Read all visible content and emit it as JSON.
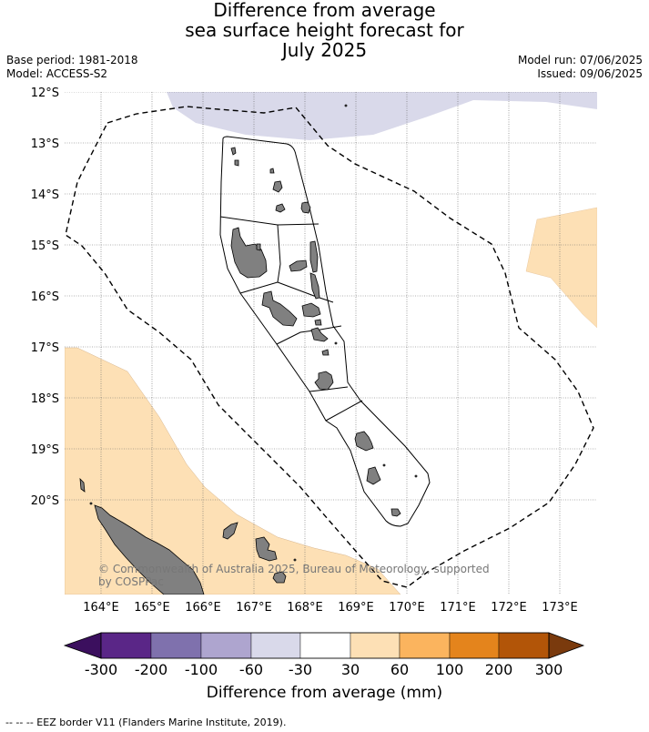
{
  "title": {
    "line1": "Difference from average",
    "line2": "sea surface height forecast for",
    "line3": "July 2025"
  },
  "meta_left": {
    "base_period": "Base period: 1981-2018",
    "model": "Model: ACCESS-S2"
  },
  "meta_right": {
    "model_run": "Model run: 07/06/2025",
    "issued": "Issued: 09/06/2025"
  },
  "map": {
    "lon_labels": [
      "164°E",
      "165°E",
      "166°E",
      "167°E",
      "168°E",
      "169°E",
      "170°E",
      "171°E",
      "172°E",
      "173°E"
    ],
    "lat_labels": [
      "12°S",
      "13°S",
      "14°S",
      "15°S",
      "16°S",
      "17°S",
      "18°S",
      "19°S",
      "20°S"
    ],
    "copyright_line1": "© Commonwealth of Australia 2025, Bureau of Meteorology, supported",
    "copyright_line2": "by COSPPac"
  },
  "colorbar": {
    "ticks": [
      "-300",
      "-200",
      "-100",
      "-60",
      "-30",
      "30",
      "60",
      "100",
      "200",
      "300"
    ],
    "colors": [
      "#3b0f5e",
      "#5a2687",
      "#7f71ad",
      "#aea5cf",
      "#d9d9ea",
      "#ffffff",
      "#fde0b5",
      "#fbb45e",
      "#e4841c",
      "#b25508",
      "#7a3a0d"
    ],
    "title": "Difference from average (mm)"
  },
  "footer": "--  --  -- EEZ border V11 (Flanders Marine Institute, 2019)."
}
